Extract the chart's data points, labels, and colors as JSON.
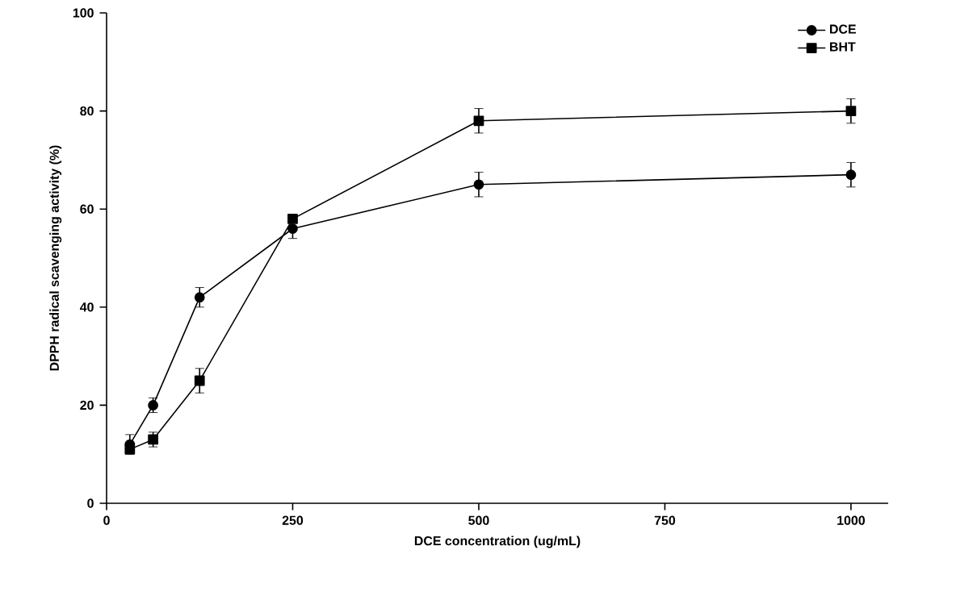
{
  "chart_data": {
    "type": "line",
    "xlabel": "DCE concentration (ug/mL)",
    "ylabel": "DPPH radical scavenging activity (%)",
    "x": [
      31.25,
      62.5,
      125,
      250,
      500,
      1000
    ],
    "xlim": [
      0,
      1050
    ],
    "xticks": [
      0,
      250,
      500,
      750,
      1000
    ],
    "ylim": [
      0,
      100
    ],
    "yticks": [
      0,
      20,
      40,
      60,
      80,
      100
    ],
    "legend": "top right",
    "grid": false,
    "line_style": "solid",
    "series": [
      {
        "name": "DCE",
        "color": "#000000",
        "marker": "circle",
        "values": [
          12,
          20,
          42,
          56,
          65,
          67
        ],
        "errors": [
          2,
          1.5,
          2,
          2,
          2.5,
          2.5
        ]
      },
      {
        "name": "BHT",
        "color": "#000000",
        "marker": "square",
        "values": [
          11,
          13,
          25,
          58,
          78,
          80
        ],
        "errors": [
          null,
          1.5,
          2.5,
          null,
          2.5,
          2.5
        ]
      }
    ]
  }
}
